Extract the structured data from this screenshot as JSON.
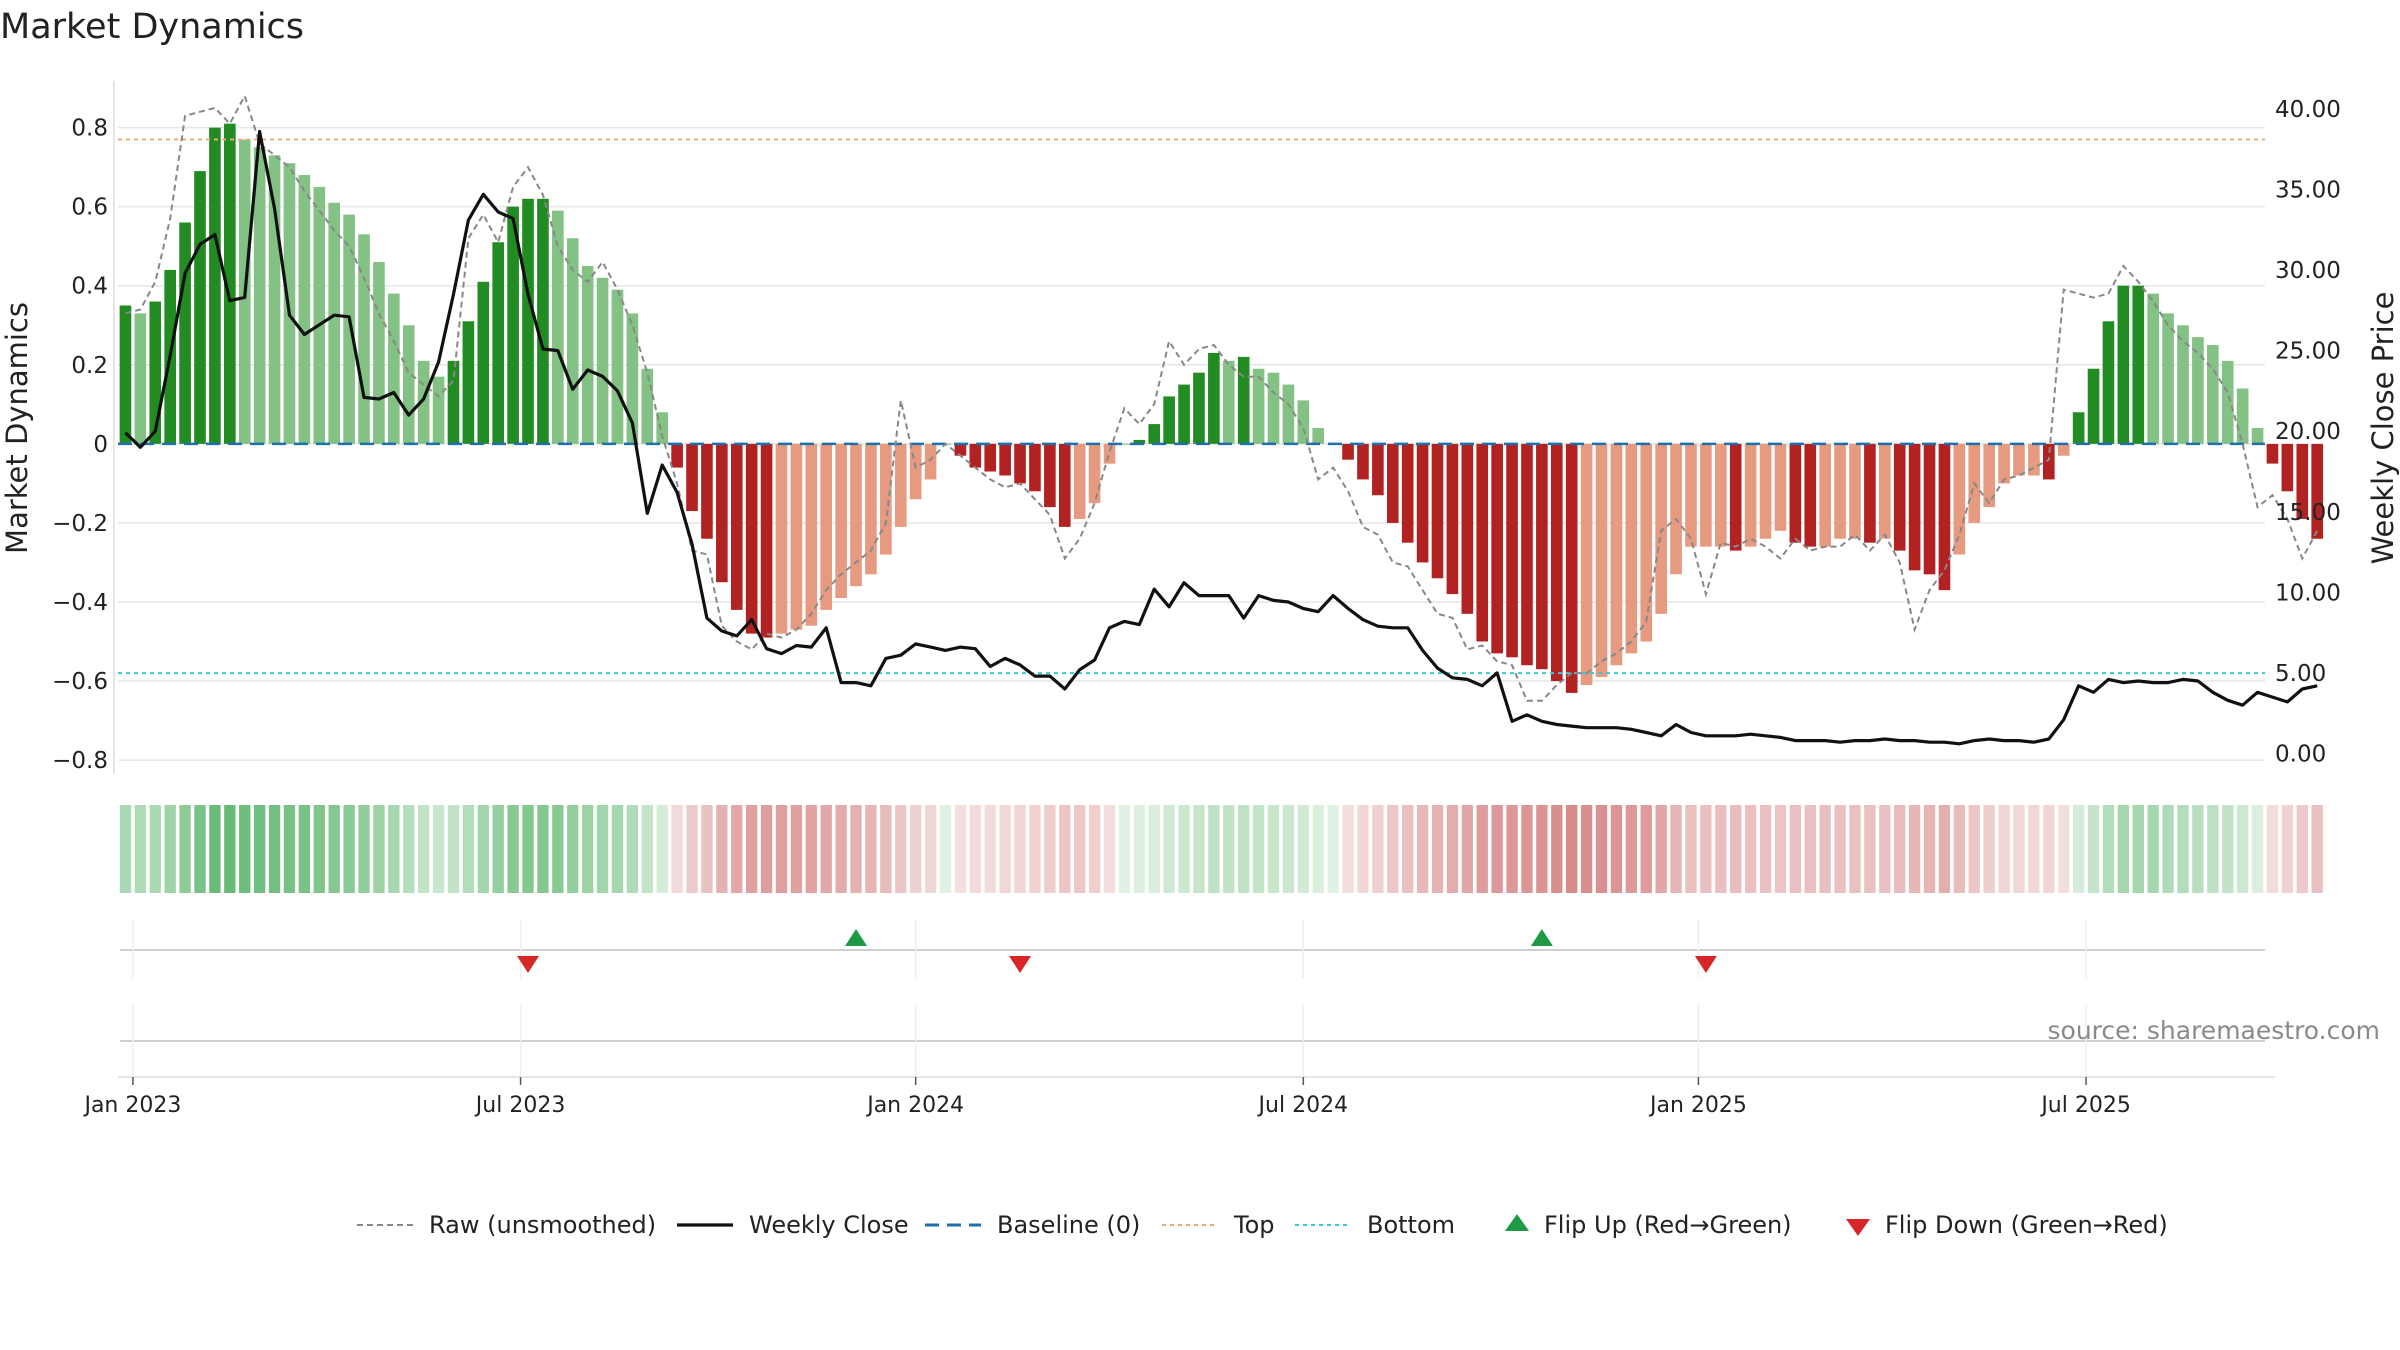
{
  "chart_data": {
    "type": "bar",
    "title": "Market Dynamics",
    "ylabel": "Market Dynamics",
    "y2label": "Weekly Close Price",
    "ylim": [
      -0.82,
      0.88
    ],
    "y2lim": [
      -0.9,
      40.8
    ],
    "y_ticks": [
      -0.8,
      -0.6,
      -0.4,
      -0.2,
      0,
      0.2,
      0.4,
      0.6,
      0.8
    ],
    "y_tick_labels": [
      "−0.8",
      "−0.6",
      "−0.4",
      "−0.2",
      "0",
      "0.2",
      "0.4",
      "0.6",
      "0.8"
    ],
    "y2_ticks": [
      0,
      5,
      10,
      15,
      20,
      25,
      30,
      35,
      40
    ],
    "y2_tick_labels": [
      "0.00",
      "5.00",
      "10.00",
      "15.00",
      "20.00",
      "25.00",
      "30.00",
      "35.00",
      "40.00"
    ],
    "x_ticks": [
      {
        "week": 1,
        "label": "Jan 2023"
      },
      {
        "week": 27,
        "label": "Jul 2023"
      },
      {
        "week": 53.5,
        "label": "Jan 2024"
      },
      {
        "week": 79.5,
        "label": "Jul 2024"
      },
      {
        "week": 106,
        "label": "Jan 2025"
      },
      {
        "week": 132,
        "label": "Jul 2025"
      }
    ],
    "week_range": [
      0,
      144
    ],
    "grid": true,
    "reference_lines": {
      "baseline": 0,
      "top": 0.77,
      "bottom": -0.58
    },
    "momentum": [
      0.35,
      0.33,
      0.36,
      0.44,
      0.56,
      0.69,
      0.8,
      0.81,
      0.77,
      0.75,
      0.73,
      0.71,
      0.68,
      0.65,
      0.61,
      0.58,
      0.53,
      0.46,
      0.38,
      0.3,
      0.21,
      0.17,
      0.21,
      0.31,
      0.41,
      0.51,
      0.6,
      0.62,
      0.62,
      0.59,
      0.52,
      0.45,
      0.42,
      0.39,
      0.33,
      0.19,
      0.08,
      -0.06,
      -0.17,
      -0.24,
      -0.35,
      -0.42,
      -0.48,
      -0.49,
      -0.48,
      -0.47,
      -0.46,
      -0.42,
      -0.39,
      -0.36,
      -0.33,
      -0.28,
      -0.21,
      -0.14,
      -0.09,
      0.0,
      -0.03,
      -0.06,
      -0.07,
      -0.08,
      -0.1,
      -0.12,
      -0.16,
      -0.21,
      -0.19,
      -0.15,
      -0.05,
      0.0,
      0.01,
      0.05,
      0.12,
      0.15,
      0.18,
      0.23,
      0.21,
      0.22,
      0.19,
      0.18,
      0.15,
      0.11,
      0.04,
      0.0,
      -0.04,
      -0.09,
      -0.13,
      -0.2,
      -0.25,
      -0.3,
      -0.34,
      -0.38,
      -0.43,
      -0.5,
      -0.53,
      -0.54,
      -0.56,
      -0.57,
      -0.6,
      -0.63,
      -0.61,
      -0.59,
      -0.56,
      -0.53,
      -0.5,
      -0.43,
      -0.33,
      -0.26,
      -0.26,
      -0.26,
      -0.27,
      -0.26,
      -0.24,
      -0.22,
      -0.25,
      -0.26,
      -0.26,
      -0.24,
      -0.24,
      -0.25,
      -0.24,
      -0.27,
      -0.32,
      -0.33,
      -0.37,
      -0.28,
      -0.2,
      -0.16,
      -0.1,
      -0.08,
      -0.08,
      -0.09,
      -0.03,
      0.08,
      0.19,
      0.31,
      0.4,
      0.4,
      0.38,
      0.33,
      0.3,
      0.27,
      0.25,
      0.21,
      0.14,
      0.04,
      -0.05,
      -0.12,
      -0.19,
      -0.24
    ],
    "series": [
      {
        "name": "Raw (unsmoothed)",
        "values": [
          0.33,
          0.34,
          0.41,
          0.57,
          0.83,
          0.84,
          0.85,
          0.81,
          0.88,
          0.76,
          0.73,
          0.7,
          0.64,
          0.59,
          0.54,
          0.5,
          0.42,
          0.33,
          0.26,
          0.18,
          0.15,
          0.12,
          0.16,
          0.52,
          0.58,
          0.51,
          0.65,
          0.7,
          0.63,
          0.5,
          0.44,
          0.41,
          0.46,
          0.39,
          0.3,
          0.18,
          0.02,
          -0.1,
          -0.27,
          -0.28,
          -0.46,
          -0.5,
          -0.52,
          -0.48,
          -0.49,
          -0.47,
          -0.43,
          -0.37,
          -0.33,
          -0.3,
          -0.27,
          -0.2,
          0.11,
          -0.06,
          -0.04,
          0.0,
          -0.03,
          -0.06,
          -0.09,
          -0.11,
          -0.1,
          -0.14,
          -0.18,
          -0.29,
          -0.24,
          -0.15,
          -0.02,
          0.09,
          0.05,
          0.1,
          0.26,
          0.2,
          0.24,
          0.25,
          0.2,
          0.17,
          0.17,
          0.13,
          0.1,
          0.04,
          -0.09,
          -0.06,
          -0.12,
          -0.21,
          -0.23,
          -0.3,
          -0.31,
          -0.37,
          -0.43,
          -0.44,
          -0.52,
          -0.51,
          -0.55,
          -0.56,
          -0.65,
          -0.65,
          -0.61,
          -0.58,
          -0.58,
          -0.55,
          -0.53,
          -0.5,
          -0.45,
          -0.22,
          -0.19,
          -0.24,
          -0.38,
          -0.25,
          -0.26,
          -0.24,
          -0.26,
          -0.29,
          -0.24,
          -0.27,
          -0.26,
          -0.26,
          -0.23,
          -0.27,
          -0.23,
          -0.3,
          -0.47,
          -0.37,
          -0.32,
          -0.23,
          -0.1,
          -0.15,
          -0.09,
          -0.08,
          -0.06,
          -0.04,
          0.39,
          0.38,
          0.37,
          0.38,
          0.45,
          0.41,
          0.36,
          0.3,
          0.26,
          0.23,
          0.19,
          0.13,
          0.0,
          -0.16,
          -0.13,
          -0.19,
          -0.29,
          -0.22,
          -0.24
        ]
      },
      {
        "name": "Weekly Close",
        "values": [
          19.9,
          19.0,
          20.0,
          24.7,
          29.8,
          31.6,
          32.2,
          28.1,
          28.3,
          38.6,
          33.8,
          27.2,
          26.0,
          26.6,
          27.2,
          27.1,
          22.1,
          22.0,
          22.4,
          21.0,
          22.0,
          24.3,
          28.5,
          33.1,
          34.7,
          33.6,
          33.2,
          28.5,
          25.1,
          25.0,
          22.6,
          23.8,
          23.4,
          22.5,
          20.5,
          14.9,
          17.9,
          16.2,
          13.0,
          8.4,
          7.6,
          7.3,
          8.3,
          6.5,
          6.2,
          6.7,
          6.6,
          7.8,
          4.4,
          4.4,
          4.2,
          5.9,
          6.1,
          6.8,
          6.6,
          6.4,
          6.6,
          6.5,
          5.4,
          5.9,
          5.5,
          4.8,
          4.8,
          4.0,
          5.2,
          5.8,
          7.8,
          8.2,
          8.0,
          10.2,
          9.1,
          10.6,
          9.8,
          9.8,
          9.8,
          8.4,
          9.8,
          9.5,
          9.4,
          9.0,
          8.8,
          9.8,
          9.0,
          8.3,
          7.9,
          7.8,
          7.8,
          6.4,
          5.3,
          4.7,
          4.6,
          4.2,
          5.0,
          2.0,
          2.4,
          2.0,
          1.8,
          1.7,
          1.6,
          1.6,
          1.6,
          1.5,
          1.3,
          1.1,
          1.8,
          1.3,
          1.1,
          1.1,
          1.1,
          1.2,
          1.1,
          1.0,
          0.8,
          0.8,
          0.8,
          0.7,
          0.8,
          0.8,
          0.9,
          0.8,
          0.8,
          0.7,
          0.7,
          0.6,
          0.8,
          0.9,
          0.8,
          0.8,
          0.7,
          0.9,
          2.1,
          4.2,
          3.8,
          4.6,
          4.4,
          4.5,
          4.4,
          4.4,
          4.6,
          4.5,
          3.8,
          3.3,
          3.0,
          3.8,
          3.5,
          3.2,
          4.0,
          4.2
        ]
      }
    ],
    "legend": {
      "position": "bottom-center",
      "entries": [
        {
          "label": "Raw (unsmoothed)",
          "style": "dashed-line",
          "color": "#888888"
        },
        {
          "label": "Weekly Close",
          "style": "solid-line",
          "color": "#111111"
        },
        {
          "label": "Baseline (0)",
          "style": "dashed-line",
          "color": "#1f6fad"
        },
        {
          "label": "Top",
          "style": "dotted-line",
          "color": "#f0a875"
        },
        {
          "label": "Bottom",
          "style": "dotted-line",
          "color": "#3cc6d6"
        },
        {
          "label": "Flip Up (Red→Green)",
          "style": "triangle-up",
          "color": "#1e9a45"
        },
        {
          "label": "Flip Down (Green→Red)",
          "style": "triangle-down",
          "color": "#d62728"
        }
      ]
    },
    "flip_up_weeks": [
      49.5,
      95.5
    ],
    "flip_down_weeks": [
      27.5,
      60.5,
      106.5
    ],
    "colors": {
      "green_strong": "#228b22",
      "green_weak": "#83c184",
      "red_strong": "#b22222",
      "red_weak": "#e69a7f",
      "raw_line": "#888888",
      "close_line": "#111111",
      "baseline": "#1f6fad",
      "top_line": "#f0a875",
      "bottom_line": "#3cc6d6",
      "flip_up": "#1e9a45",
      "flip_down": "#d62728"
    }
  },
  "source_note": "source: sharemaestro.com"
}
